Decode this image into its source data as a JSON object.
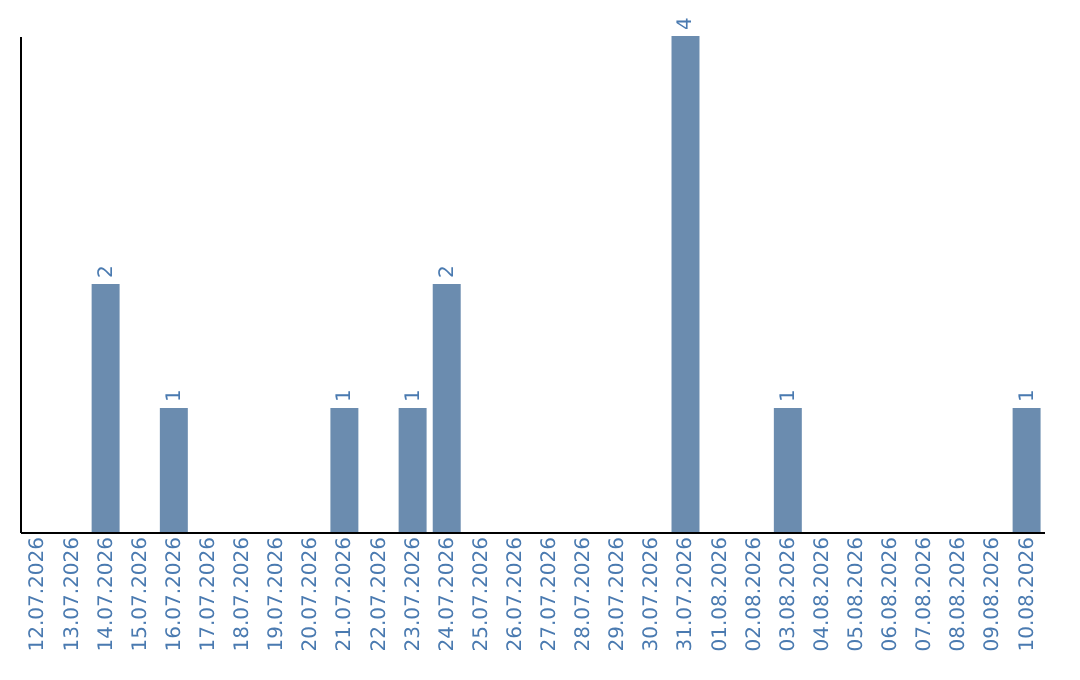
{
  "chart_data": {
    "type": "bar",
    "categories": [
      "12.07.2026",
      "13.07.2026",
      "14.07.2026",
      "15.07.2026",
      "16.07.2026",
      "17.07.2026",
      "18.07.2026",
      "19.07.2026",
      "20.07.2026",
      "21.07.2026",
      "22.07.2026",
      "23.07.2026",
      "24.07.2026",
      "25.07.2026",
      "26.07.2026",
      "27.07.2026",
      "28.07.2026",
      "29.07.2026",
      "30.07.2026",
      "31.07.2026",
      "01.08.2026",
      "02.08.2026",
      "03.08.2026",
      "04.08.2026",
      "05.08.2026",
      "06.08.2026",
      "07.08.2026",
      "08.08.2026",
      "09.08.2026",
      "10.08.2026"
    ],
    "values": [
      0,
      0,
      2,
      0,
      1,
      0,
      0,
      0,
      0,
      1,
      0,
      1,
      2,
      0,
      0,
      0,
      0,
      0,
      0,
      4,
      0,
      0,
      1,
      0,
      0,
      0,
      0,
      0,
      0,
      1
    ],
    "value_labels": [
      null,
      null,
      "2",
      null,
      "1",
      null,
      null,
      null,
      null,
      "1",
      null,
      "1",
      "2",
      null,
      null,
      null,
      null,
      null,
      null,
      "4",
      null,
      null,
      "1",
      null,
      null,
      null,
      null,
      null,
      null,
      "1"
    ],
    "color": "#6b8caf",
    "ylim": [
      0,
      4
    ],
    "tick_labels": "x",
    "grid": false
  }
}
